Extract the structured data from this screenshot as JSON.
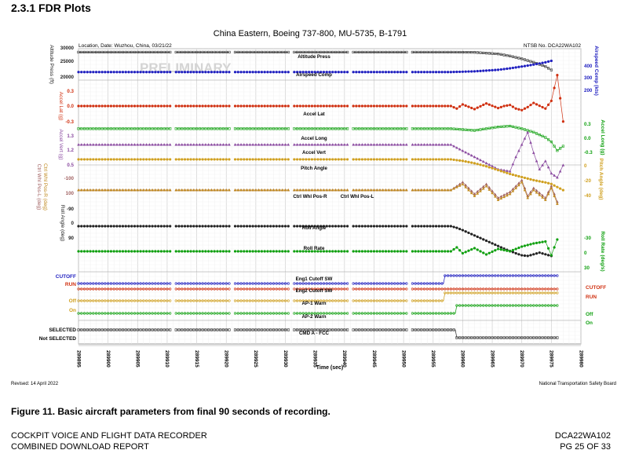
{
  "section_title": "2.3.1  FDR Plots",
  "figure_caption": "Figure 11. Basic aircraft parameters from final 90 seconds of recording.",
  "footer": {
    "left_line1": "COCKPIT VOICE AND FLIGHT DATA RECORDER",
    "left_line2": "COMBINED DOWNLOAD REPORT",
    "right_line1": "DCA22WA102",
    "right_line2": "PG 25 OF 33"
  },
  "chart_data": {
    "type": "line",
    "title": "China Eastern, Boeing 737-800, MU-5735, B-1791",
    "location_date": "Location, Date: Wuzhou, China, 03/21/22",
    "ntsb_no": "NTSB No. DCA22WA102",
    "watermark": "PRELIMINARY",
    "revised": "Revised: 14 April 2022",
    "agency": "National Transportation Safety Board",
    "xlabel": "Time (sec)",
    "xlim": [
      289895,
      289980
    ],
    "x_ticks": [
      "289895",
      "289900",
      "289905",
      "289910",
      "289915",
      "289920",
      "289925",
      "289930",
      "289935",
      "289940",
      "289945",
      "289950",
      "289955",
      "289960",
      "289965",
      "289970",
      "289975",
      "289980"
    ],
    "grid": true,
    "left_axes": [
      {
        "label": "Altitude Press (ft)",
        "ticks": [
          "30000",
          "25000",
          "20000"
        ],
        "color": "#222222"
      },
      {
        "label": "Accel Lat (g)",
        "ticks": [
          "0.3",
          "0.0",
          "-0.3"
        ],
        "color": "#d03010"
      },
      {
        "label": "Accel Vert (g)",
        "ticks": [
          "1.3",
          "1.2",
          "0.5"
        ],
        "color": "#8a4aa0"
      },
      {
        "label": "Ctrl Whl Pos-L (deg)",
        "ticks": [
          "-100",
          "100"
        ],
        "color": "#a06060"
      },
      {
        "label": "Ctrl Whl Pos-R (deg)",
        "ticks": [],
        "color": "#c08a20"
      },
      {
        "label": "Roll Angle (deg)",
        "ticks": [
          "-90",
          "0",
          "90"
        ],
        "color": "#222222"
      }
    ],
    "right_axes": [
      {
        "label": "Airspeed Comp (kts)",
        "ticks": [
          "400",
          "300",
          "200"
        ],
        "color": "#2020c0"
      },
      {
        "label": "Accel Long (g)",
        "ticks": [
          "0.3",
          "0.0",
          "-0.3"
        ],
        "color": "#10a010"
      },
      {
        "label": "Pitch Angle (deg)",
        "ticks": [
          "0",
          "-20",
          "-40"
        ],
        "color": "#d0a020"
      },
      {
        "label": "Roll Rate (deg/s)",
        "ticks": [
          "-30",
          "0",
          "30"
        ],
        "color": "#10a010"
      }
    ],
    "discrete_labels": [
      {
        "text": "CUTOFF",
        "side": "left",
        "color": "#2020c0"
      },
      {
        "text": "RUN",
        "side": "left",
        "color": "#d03010"
      },
      {
        "text": "Off",
        "side": "left",
        "color": "#d0a020"
      },
      {
        "text": "On",
        "side": "left",
        "color": "#d0a020"
      },
      {
        "text": "SELECTED",
        "side": "left",
        "color": "#000000"
      },
      {
        "text": "Not SELECTED",
        "side": "left",
        "color": "#000000"
      },
      {
        "text": "CUTOFF",
        "side": "right",
        "color": "#d03010"
      },
      {
        "text": "RUN",
        "side": "right",
        "color": "#d03010"
      },
      {
        "text": "Off",
        "side": "right",
        "color": "#10a010"
      },
      {
        "text": "On",
        "side": "right",
        "color": "#10a010"
      }
    ],
    "series": [
      {
        "name": "Altitude Press",
        "color": "#333333",
        "marker": "square",
        "units": "ft",
        "x": [
          289895,
          289958,
          289962,
          289966,
          289968,
          289970,
          289972,
          289974,
          289975
        ],
        "y": [
          29100,
          29100,
          29050,
          28600,
          28000,
          27200,
          26200,
          25000,
          24000
        ]
      },
      {
        "name": "Airspeed Comp",
        "color": "#2020c0",
        "marker": "circle",
        "units": "kts",
        "x": [
          289895,
          289958,
          289962,
          289966,
          289968,
          289970,
          289972,
          289974,
          289975
        ],
        "y": [
          285,
          285,
          290,
          300,
          310,
          322,
          335,
          350,
          360
        ]
      },
      {
        "name": "Accel Lat",
        "color": "#d03010",
        "marker": "circle",
        "units": "g",
        "x": [
          289895,
          289958,
          289959,
          289960,
          289962,
          289964,
          289966,
          289967,
          289968,
          289969,
          289970,
          289971,
          289972,
          289974,
          289975,
          289976,
          289977
        ],
        "y": [
          0.0,
          0.0,
          -0.05,
          0.03,
          -0.06,
          0.05,
          -0.04,
          0.0,
          0.02,
          -0.05,
          -0.08,
          -0.02,
          0.06,
          -0.05,
          0.1,
          0.6,
          -0.3
        ]
      },
      {
        "name": "Accel Long",
        "color": "#10a010",
        "marker": "square",
        "units": "g",
        "x": [
          289895,
          289958,
          289960,
          289962,
          289964,
          289966,
          289968,
          289970,
          289972,
          289974,
          289975,
          289976,
          289977
        ],
        "y": [
          0.1,
          0.1,
          0.09,
          0.08,
          0.1,
          0.12,
          0.13,
          0.1,
          0.06,
          0.0,
          -0.05,
          -0.15,
          -0.1
        ]
      },
      {
        "name": "Accel Vert",
        "color": "#8a4aa0",
        "marker": "triangle",
        "units": "g",
        "x": [
          289895,
          289958,
          289960,
          289962,
          289964,
          289966,
          289968,
          289969,
          289970,
          289971,
          289972,
          289973,
          289974,
          289975,
          289976,
          289977
        ],
        "y": [
          1.0,
          1.0,
          0.85,
          0.7,
          0.55,
          0.4,
          0.35,
          0.7,
          1.0,
          1.3,
          0.8,
          0.4,
          0.6,
          0.3,
          0.2,
          0.5
        ]
      },
      {
        "name": "Pitch Angle",
        "color": "#d0a020",
        "marker": "circle",
        "units": "deg",
        "x": [
          289895,
          289958,
          289960,
          289962,
          289964,
          289966,
          289968,
          289970,
          289972,
          289974,
          289975,
          289976,
          289977
        ],
        "y": [
          2,
          2,
          0,
          -3,
          -7,
          -12,
          -17,
          -21,
          -25,
          -28,
          -30,
          -34,
          -38
        ]
      },
      {
        "name": "Ctrl Whl Pos-R",
        "color": "#a06060",
        "marker": "triangle",
        "units": "deg",
        "x": [
          289895,
          289958,
          289960,
          289962,
          289964,
          289966,
          289968,
          289969,
          289970,
          289971,
          289972,
          289974,
          289975,
          289976
        ],
        "y": [
          0,
          0,
          20,
          -10,
          15,
          -20,
          -5,
          10,
          25,
          -15,
          5,
          -20,
          10,
          -30
        ]
      },
      {
        "name": "Ctrl Whl Pos-L",
        "color": "#c08a20",
        "marker": "triangle",
        "units": "deg",
        "x": [
          289895,
          289958,
          289960,
          289962,
          289964,
          289966,
          289968,
          289969,
          289970,
          289971,
          289972,
          289974,
          289975,
          289976
        ],
        "y": [
          0,
          0,
          15,
          -15,
          10,
          -25,
          -10,
          5,
          20,
          -20,
          0,
          -25,
          5,
          -35
        ]
      },
      {
        "name": "Roll Angle",
        "color": "#222222",
        "marker": "circle",
        "units": "deg",
        "x": [
          289895,
          289958,
          289959,
          289960,
          289961,
          289962,
          289963,
          289964,
          289965,
          289966,
          289967,
          289968,
          289969,
          289970,
          289971,
          289972,
          289973,
          289974,
          289975
        ],
        "y": [
          0,
          0,
          -5,
          -12,
          -20,
          -28,
          -36,
          -44,
          -52,
          -60,
          -68,
          -75,
          -82,
          -88,
          -90,
          -85,
          -80,
          -85,
          -90
        ]
      },
      {
        "name": "Roll Rate",
        "color": "#10a010",
        "marker": "circle",
        "units": "deg/s",
        "x": [
          289895,
          289958,
          289959,
          289960,
          289962,
          289964,
          289966,
          289968,
          289970,
          289972,
          289974,
          289975,
          289976
        ],
        "y": [
          0,
          0,
          10,
          -5,
          8,
          -8,
          6,
          0,
          12,
          20,
          25,
          -10,
          30
        ]
      },
      {
        "name": "Eng1 Cutoff SW",
        "color": "#2020c0",
        "marker": "circle",
        "discrete": true,
        "states": [
          "RUN",
          "CUTOFF"
        ],
        "x": [
          289895,
          289956,
          289957,
          289976
        ],
        "y": [
          0,
          0,
          1,
          1
        ]
      },
      {
        "name": "Eng2 Cutoff SW",
        "color": "#d03010",
        "marker": "circle",
        "discrete": true,
        "states": [
          "RUN",
          "CUTOFF"
        ],
        "x": [
          289895,
          289957,
          289976
        ],
        "y": [
          0,
          0,
          0
        ]
      },
      {
        "name": "AP-1 Warn",
        "color": "#d0a020",
        "marker": "circle",
        "discrete": true,
        "states": [
          "Off",
          "On"
        ],
        "x": [
          289895,
          289956,
          289957,
          289976
        ],
        "y": [
          0,
          0,
          1,
          1
        ]
      },
      {
        "name": "AP-2 Warn",
        "color": "#10a010",
        "marker": "circle",
        "discrete": true,
        "states": [
          "Off",
          "On"
        ],
        "x": [
          289895,
          289958,
          289959,
          289976
        ],
        "y": [
          0,
          0,
          1,
          1
        ]
      },
      {
        "name": "CMD A - FCC",
        "color": "#333333",
        "marker": "square",
        "discrete": true,
        "states": [
          "Not SELECTED",
          "SELECTED"
        ],
        "x": [
          289895,
          289958,
          289959,
          289976
        ],
        "y": [
          1,
          1,
          0,
          0
        ]
      }
    ]
  }
}
